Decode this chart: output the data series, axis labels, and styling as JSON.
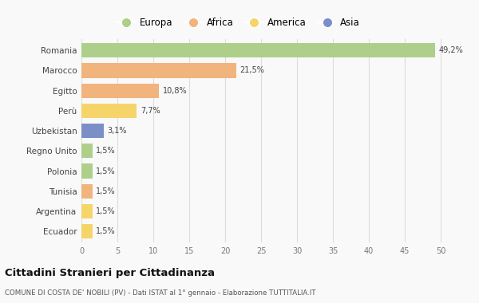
{
  "countries": [
    "Romania",
    "Marocco",
    "Egitto",
    "Perù",
    "Uzbekistan",
    "Regno Unito",
    "Polonia",
    "Tunisia",
    "Argentina",
    "Ecuador"
  ],
  "values": [
    49.2,
    21.5,
    10.8,
    7.7,
    3.1,
    1.5,
    1.5,
    1.5,
    1.5,
    1.5
  ],
  "labels": [
    "49,2%",
    "21,5%",
    "10,8%",
    "7,7%",
    "3,1%",
    "1,5%",
    "1,5%",
    "1,5%",
    "1,5%",
    "1,5%"
  ],
  "continents": [
    "Europa",
    "Africa",
    "Africa",
    "America",
    "Asia",
    "Europa",
    "Europa",
    "Africa",
    "America",
    "America"
  ],
  "colors": {
    "Europa": "#aecf8a",
    "Africa": "#f0b47c",
    "America": "#f5d46a",
    "Asia": "#7a8fc8"
  },
  "xlim": [
    0,
    52
  ],
  "xticks": [
    0,
    5,
    10,
    15,
    20,
    25,
    30,
    35,
    40,
    45,
    50
  ],
  "title": "Cittadini Stranieri per Cittadinanza",
  "subtitle": "COMUNE DI COSTA DE' NOBILI (PV) - Dati ISTAT al 1° gennaio - Elaborazione TUTTITALIA.IT",
  "bg_color": "#f9f9f9",
  "grid_color": "#dddddd",
  "bar_height": 0.72
}
